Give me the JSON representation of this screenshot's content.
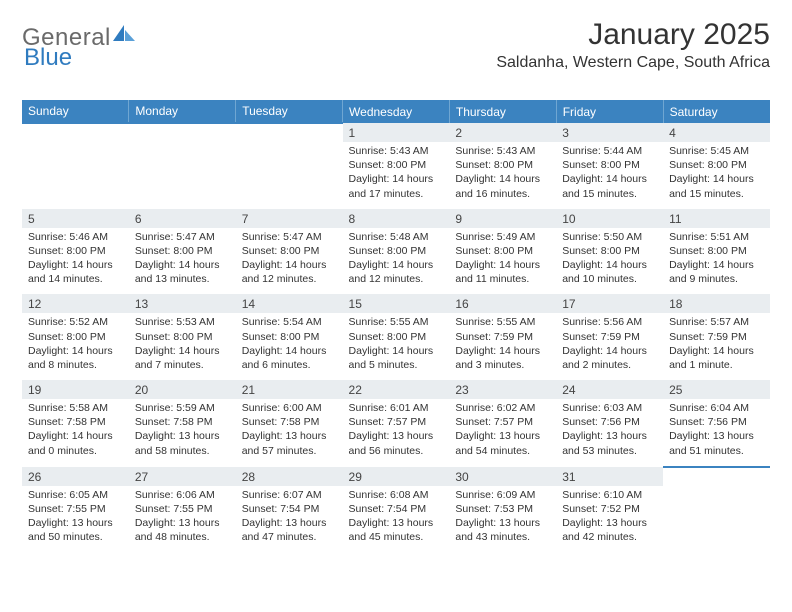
{
  "logo": {
    "textGray": "General",
    "textBlue": "Blue"
  },
  "title": {
    "month": "January 2025",
    "location": "Saldanha, Western Cape, South Africa"
  },
  "colors": {
    "header_bg": "#3b83c0",
    "header_text": "#ffffff",
    "daynum_bg": "#e9edf0",
    "week_divider": "#3b83c0",
    "body_text": "#333333",
    "logo_gray": "#6a6a6a",
    "logo_blue": "#2f7bbf",
    "page_bg": "#ffffff"
  },
  "typography": {
    "title_fontsize": 30,
    "location_fontsize": 16,
    "weekday_fontsize": 12,
    "daynum_fontsize": 12,
    "cell_fontsize": 10.5
  },
  "weekdays": [
    "Sunday",
    "Monday",
    "Tuesday",
    "Wednesday",
    "Thursday",
    "Friday",
    "Saturday"
  ],
  "weeks": [
    [
      null,
      null,
      null,
      {
        "n": "1",
        "sr": "Sunrise: 5:43 AM",
        "ss": "Sunset: 8:00 PM",
        "d1": "Daylight: 14 hours",
        "d2": "and 17 minutes."
      },
      {
        "n": "2",
        "sr": "Sunrise: 5:43 AM",
        "ss": "Sunset: 8:00 PM",
        "d1": "Daylight: 14 hours",
        "d2": "and 16 minutes."
      },
      {
        "n": "3",
        "sr": "Sunrise: 5:44 AM",
        "ss": "Sunset: 8:00 PM",
        "d1": "Daylight: 14 hours",
        "d2": "and 15 minutes."
      },
      {
        "n": "4",
        "sr": "Sunrise: 5:45 AM",
        "ss": "Sunset: 8:00 PM",
        "d1": "Daylight: 14 hours",
        "d2": "and 15 minutes."
      }
    ],
    [
      {
        "n": "5",
        "sr": "Sunrise: 5:46 AM",
        "ss": "Sunset: 8:00 PM",
        "d1": "Daylight: 14 hours",
        "d2": "and 14 minutes."
      },
      {
        "n": "6",
        "sr": "Sunrise: 5:47 AM",
        "ss": "Sunset: 8:00 PM",
        "d1": "Daylight: 14 hours",
        "d2": "and 13 minutes."
      },
      {
        "n": "7",
        "sr": "Sunrise: 5:47 AM",
        "ss": "Sunset: 8:00 PM",
        "d1": "Daylight: 14 hours",
        "d2": "and 12 minutes."
      },
      {
        "n": "8",
        "sr": "Sunrise: 5:48 AM",
        "ss": "Sunset: 8:00 PM",
        "d1": "Daylight: 14 hours",
        "d2": "and 12 minutes."
      },
      {
        "n": "9",
        "sr": "Sunrise: 5:49 AM",
        "ss": "Sunset: 8:00 PM",
        "d1": "Daylight: 14 hours",
        "d2": "and 11 minutes."
      },
      {
        "n": "10",
        "sr": "Sunrise: 5:50 AM",
        "ss": "Sunset: 8:00 PM",
        "d1": "Daylight: 14 hours",
        "d2": "and 10 minutes."
      },
      {
        "n": "11",
        "sr": "Sunrise: 5:51 AM",
        "ss": "Sunset: 8:00 PM",
        "d1": "Daylight: 14 hours",
        "d2": "and 9 minutes."
      }
    ],
    [
      {
        "n": "12",
        "sr": "Sunrise: 5:52 AM",
        "ss": "Sunset: 8:00 PM",
        "d1": "Daylight: 14 hours",
        "d2": "and 8 minutes."
      },
      {
        "n": "13",
        "sr": "Sunrise: 5:53 AM",
        "ss": "Sunset: 8:00 PM",
        "d1": "Daylight: 14 hours",
        "d2": "and 7 minutes."
      },
      {
        "n": "14",
        "sr": "Sunrise: 5:54 AM",
        "ss": "Sunset: 8:00 PM",
        "d1": "Daylight: 14 hours",
        "d2": "and 6 minutes."
      },
      {
        "n": "15",
        "sr": "Sunrise: 5:55 AM",
        "ss": "Sunset: 8:00 PM",
        "d1": "Daylight: 14 hours",
        "d2": "and 5 minutes."
      },
      {
        "n": "16",
        "sr": "Sunrise: 5:55 AM",
        "ss": "Sunset: 7:59 PM",
        "d1": "Daylight: 14 hours",
        "d2": "and 3 minutes."
      },
      {
        "n": "17",
        "sr": "Sunrise: 5:56 AM",
        "ss": "Sunset: 7:59 PM",
        "d1": "Daylight: 14 hours",
        "d2": "and 2 minutes."
      },
      {
        "n": "18",
        "sr": "Sunrise: 5:57 AM",
        "ss": "Sunset: 7:59 PM",
        "d1": "Daylight: 14 hours",
        "d2": "and 1 minute."
      }
    ],
    [
      {
        "n": "19",
        "sr": "Sunrise: 5:58 AM",
        "ss": "Sunset: 7:58 PM",
        "d1": "Daylight: 14 hours",
        "d2": "and 0 minutes."
      },
      {
        "n": "20",
        "sr": "Sunrise: 5:59 AM",
        "ss": "Sunset: 7:58 PM",
        "d1": "Daylight: 13 hours",
        "d2": "and 58 minutes."
      },
      {
        "n": "21",
        "sr": "Sunrise: 6:00 AM",
        "ss": "Sunset: 7:58 PM",
        "d1": "Daylight: 13 hours",
        "d2": "and 57 minutes."
      },
      {
        "n": "22",
        "sr": "Sunrise: 6:01 AM",
        "ss": "Sunset: 7:57 PM",
        "d1": "Daylight: 13 hours",
        "d2": "and 56 minutes."
      },
      {
        "n": "23",
        "sr": "Sunrise: 6:02 AM",
        "ss": "Sunset: 7:57 PM",
        "d1": "Daylight: 13 hours",
        "d2": "and 54 minutes."
      },
      {
        "n": "24",
        "sr": "Sunrise: 6:03 AM",
        "ss": "Sunset: 7:56 PM",
        "d1": "Daylight: 13 hours",
        "d2": "and 53 minutes."
      },
      {
        "n": "25",
        "sr": "Sunrise: 6:04 AM",
        "ss": "Sunset: 7:56 PM",
        "d1": "Daylight: 13 hours",
        "d2": "and 51 minutes."
      }
    ],
    [
      {
        "n": "26",
        "sr": "Sunrise: 6:05 AM",
        "ss": "Sunset: 7:55 PM",
        "d1": "Daylight: 13 hours",
        "d2": "and 50 minutes."
      },
      {
        "n": "27",
        "sr": "Sunrise: 6:06 AM",
        "ss": "Sunset: 7:55 PM",
        "d1": "Daylight: 13 hours",
        "d2": "and 48 minutes."
      },
      {
        "n": "28",
        "sr": "Sunrise: 6:07 AM",
        "ss": "Sunset: 7:54 PM",
        "d1": "Daylight: 13 hours",
        "d2": "and 47 minutes."
      },
      {
        "n": "29",
        "sr": "Sunrise: 6:08 AM",
        "ss": "Sunset: 7:54 PM",
        "d1": "Daylight: 13 hours",
        "d2": "and 45 minutes."
      },
      {
        "n": "30",
        "sr": "Sunrise: 6:09 AM",
        "ss": "Sunset: 7:53 PM",
        "d1": "Daylight: 13 hours",
        "d2": "and 43 minutes."
      },
      {
        "n": "31",
        "sr": "Sunrise: 6:10 AM",
        "ss": "Sunset: 7:52 PM",
        "d1": "Daylight: 13 hours",
        "d2": "and 42 minutes."
      },
      null
    ]
  ]
}
